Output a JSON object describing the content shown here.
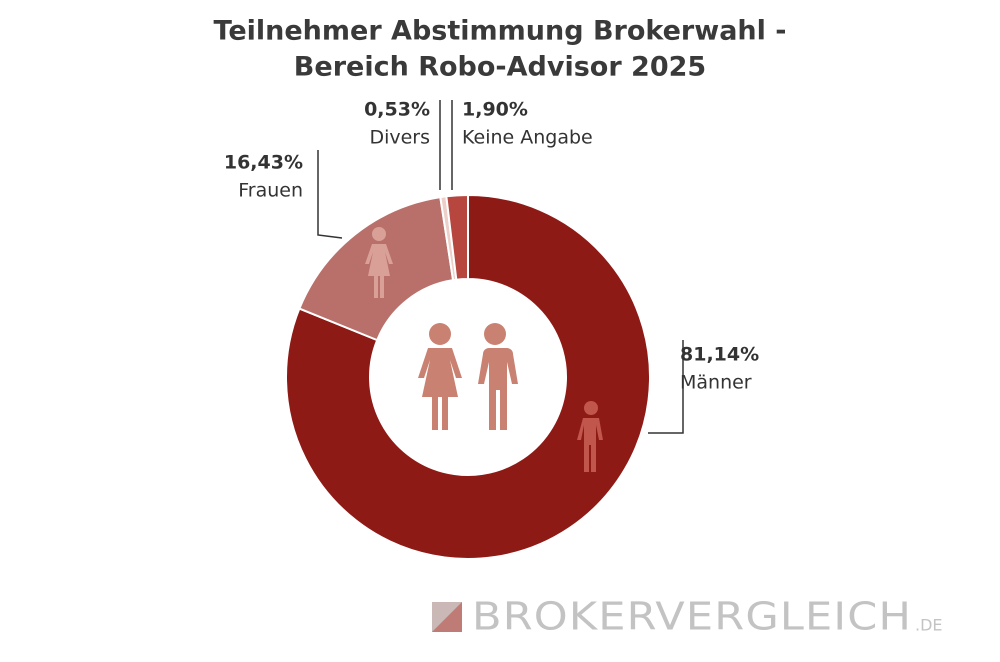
{
  "chart_data": {
    "type": "donut",
    "title": [
      "Teilnehmer Abstimmung Brokerwahl -",
      "Bereich Robo-Advisor 2025"
    ],
    "categories": [
      "Männer",
      "Frauen",
      "Divers",
      "Keine Angabe"
    ],
    "values": [
      81.14,
      16.43,
      0.53,
      1.9
    ],
    "value_labels": [
      "81,14%",
      "16,43%",
      "0,53%",
      "1,90%"
    ],
    "colors": [
      "#8e1a16",
      "#b9706a",
      "#eccfc8",
      "#b7463e"
    ],
    "watermark": "BROKERVERGLEICH",
    "watermark_suffix": ".DE"
  }
}
